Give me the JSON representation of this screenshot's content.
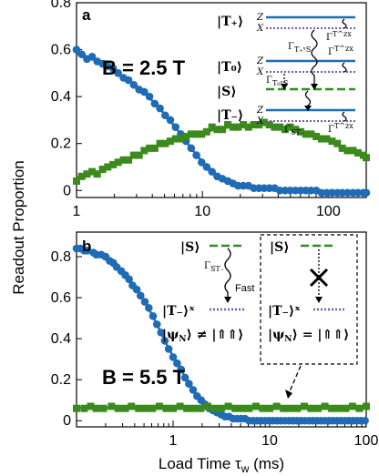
{
  "colors": {
    "blue": "#1f6bb5",
    "green": "#3c8a1e",
    "purple": "#7a5aa8",
    "green_line": "#2e8b1e"
  },
  "ylabel": "Readout Proportion",
  "xlabel": "Load Time τ",
  "xlabel_sub": "w",
  "xlabel_unit": " (ms)",
  "chart_data": [
    {
      "type": "scatter",
      "panel": "a",
      "xscale": "log",
      "xlim": [
        1,
        200
      ],
      "ylim": [
        -0.03,
        0.8
      ],
      "xticks": [
        1,
        10,
        100
      ],
      "yticks": [
        0,
        0.2,
        0.4,
        0.6,
        0.8
      ],
      "ytick_labels": [
        "0",
        "0.2",
        "0.4",
        "0.6",
        "0.8"
      ],
      "annotation": "B = 2.5 T",
      "series": [
        {
          "color": "blue",
          "marker": "circle",
          "x": [
            1.0,
            1.1,
            1.21,
            1.33,
            1.46,
            1.61,
            1.77,
            1.95,
            2.14,
            2.36,
            2.59,
            2.85,
            3.14,
            3.45,
            3.8,
            4.18,
            4.6,
            5.06,
            5.56,
            6.12,
            6.73,
            7.4,
            8.14,
            8.96,
            9.85,
            10.8,
            11.9,
            13.1,
            14.4,
            15.9,
            17.5,
            19.2,
            21.1,
            23.2,
            25.6,
            28.1,
            30.9,
            34.0,
            37.4,
            41.2,
            45.3,
            49.8,
            54.8,
            60.3,
            66.3,
            72.9,
            80.2,
            88.2,
            97.0,
            107,
            118,
            129,
            142,
            157,
            172,
            190,
            200
          ],
          "y": [
            0.6,
            0.58,
            0.56,
            0.57,
            0.55,
            0.54,
            0.53,
            0.52,
            0.5,
            0.48,
            0.47,
            0.45,
            0.43,
            0.42,
            0.4,
            0.37,
            0.35,
            0.32,
            0.3,
            0.27,
            0.24,
            0.21,
            0.18,
            0.15,
            0.12,
            0.1,
            0.08,
            0.06,
            0.05,
            0.04,
            0.03,
            0.02,
            0.02,
            0.02,
            0.01,
            0.01,
            0.01,
            0.01,
            0.01,
            0.0,
            0.0,
            0.0,
            0.0,
            0.0,
            0.0,
            0.0,
            0.0,
            -0.01,
            -0.01,
            -0.01,
            -0.01,
            -0.01,
            -0.01,
            -0.01,
            -0.01,
            -0.01,
            -0.01
          ]
        },
        {
          "color": "green",
          "marker": "square",
          "x": [
            1.0,
            1.1,
            1.21,
            1.33,
            1.46,
            1.61,
            1.77,
            1.95,
            2.14,
            2.36,
            2.59,
            2.85,
            3.14,
            3.45,
            3.8,
            4.18,
            4.6,
            5.06,
            5.56,
            6.12,
            6.73,
            7.4,
            8.14,
            8.96,
            9.85,
            10.8,
            11.9,
            13.1,
            14.4,
            15.9,
            17.5,
            19.2,
            21.1,
            23.2,
            25.6,
            28.1,
            30.9,
            34.0,
            37.4,
            41.2,
            45.3,
            49.8,
            54.8,
            60.3,
            66.3,
            72.9,
            80.2,
            88.2,
            97.0,
            107,
            118,
            129,
            142,
            157,
            172,
            190,
            200
          ],
          "y": [
            0.04,
            0.06,
            0.07,
            0.08,
            0.07,
            0.09,
            0.1,
            0.11,
            0.12,
            0.13,
            0.13,
            0.15,
            0.15,
            0.17,
            0.18,
            0.18,
            0.2,
            0.2,
            0.21,
            0.22,
            0.22,
            0.23,
            0.24,
            0.24,
            0.24,
            0.25,
            0.27,
            0.26,
            0.26,
            0.28,
            0.27,
            0.27,
            0.28,
            0.27,
            0.28,
            0.28,
            0.29,
            0.28,
            0.27,
            0.27,
            0.26,
            0.27,
            0.26,
            0.25,
            0.24,
            0.24,
            0.23,
            0.22,
            0.22,
            0.21,
            0.2,
            0.18,
            0.17,
            0.17,
            0.16,
            0.15,
            0.14
          ]
        }
      ]
    },
    {
      "type": "scatter",
      "panel": "b",
      "xscale": "log",
      "xlim": [
        0.1,
        100
      ],
      "ylim": [
        -0.03,
        0.92
      ],
      "xticks": [
        1,
        10,
        100
      ],
      "yticks": [
        0,
        0.2,
        0.4,
        0.6,
        0.8
      ],
      "ytick_labels": [
        "0",
        "0.2",
        "0.4",
        "0.6",
        "0.8"
      ],
      "annotation": "B = 5.5 T",
      "series": [
        {
          "color": "blue",
          "marker": "circle",
          "x": [
            0.1,
            0.11,
            0.12,
            0.13,
            0.15,
            0.16,
            0.18,
            0.2,
            0.22,
            0.24,
            0.26,
            0.29,
            0.32,
            0.35,
            0.38,
            0.42,
            0.46,
            0.51,
            0.56,
            0.62,
            0.68,
            0.75,
            0.82,
            0.9,
            1.0,
            1.1,
            1.21,
            1.33,
            1.46,
            1.61,
            1.77,
            1.95,
            2.14,
            2.36,
            2.59,
            2.85,
            3.14,
            3.45,
            3.8,
            4.18,
            4.6,
            5.06,
            5.56,
            6.12,
            6.73,
            7.4,
            8.14,
            8.96,
            9.85,
            10.8,
            11.9,
            13.1,
            14.4,
            15.9,
            17.5,
            19.2,
            21.1,
            23.2,
            25.6,
            28.1,
            30.9,
            34.0,
            37.4,
            41.2,
            45.3,
            49.8,
            54.8,
            60.3,
            66.3,
            72.9,
            80.2,
            88.2,
            97.0
          ],
          "y": [
            0.84,
            0.84,
            0.83,
            0.83,
            0.82,
            0.81,
            0.81,
            0.8,
            0.78,
            0.77,
            0.75,
            0.73,
            0.71,
            0.69,
            0.66,
            0.64,
            0.61,
            0.58,
            0.55,
            0.51,
            0.47,
            0.43,
            0.39,
            0.35,
            0.31,
            0.28,
            0.25,
            0.21,
            0.18,
            0.15,
            0.12,
            0.1,
            0.08,
            0.06,
            0.05,
            0.04,
            0.03,
            0.02,
            0.02,
            0.01,
            0.01,
            0.01,
            0.01,
            0.0,
            0.0,
            0.0,
            0.0,
            0.0,
            0.0,
            0.0,
            0.0,
            0.0,
            0.0,
            0.0,
            0.0,
            0.0,
            0.0,
            0.0,
            0.0,
            0.0,
            0.0,
            0.0,
            0.0,
            0.0,
            0.0,
            0.0,
            0.0,
            0.0,
            0.0,
            0.0,
            0.0,
            0.0,
            0.0
          ]
        },
        {
          "color": "green",
          "marker": "square",
          "x": [
            0.1,
            0.12,
            0.14,
            0.16,
            0.19,
            0.23,
            0.27,
            0.32,
            0.37,
            0.44,
            0.52,
            0.61,
            0.72,
            0.85,
            1.0,
            1.18,
            1.39,
            1.64,
            1.93,
            2.28,
            2.68,
            3.16,
            3.73,
            4.39,
            5.18,
            6.11,
            7.2,
            8.48,
            10.0,
            11.8,
            13.9,
            16.4,
            19.3,
            22.8,
            26.8,
            31.6,
            37.3,
            43.9,
            51.8,
            61.1,
            72.0,
            84.8,
            100
          ],
          "y": [
            0.06,
            0.06,
            0.07,
            0.06,
            0.06,
            0.07,
            0.06,
            0.06,
            0.07,
            0.06,
            0.06,
            0.06,
            0.07,
            0.06,
            0.06,
            0.07,
            0.06,
            0.06,
            0.06,
            0.07,
            0.06,
            0.06,
            0.07,
            0.06,
            0.06,
            0.06,
            0.07,
            0.06,
            0.06,
            0.07,
            0.06,
            0.06,
            0.06,
            0.07,
            0.06,
            0.06,
            0.07,
            0.06,
            0.06,
            0.06,
            0.07,
            0.06,
            0.07
          ]
        }
      ]
    }
  ],
  "inset_a": {
    "T_plus": "|T₊⟩",
    "T_zero": "|T₀⟩",
    "S": "|S⟩",
    "T_minus": "|T₋⟩",
    "z": "Z",
    "x": "X",
    "rate_T": "Γ",
    "rate_T_sup": "T^zx",
    "rate_TpS": "Γ",
    "rate_TpS_sub": "T₊ˣS",
    "rate_T0S": "Γ",
    "rate_T0S_sub": "T₀ˣS",
    "rate_STm": "Γ",
    "rate_STm_sub": "ST₋"
  },
  "inset_b": {
    "S": "|S⟩",
    "T_minus": "|T₋⟩ˣ",
    "psi_left": "|ψ",
    "psi_sub": "N",
    "psi_left_rel": "⟩ ≠ |⇑⇑⟩",
    "psi_right_rel": "⟩ = |⇑⇑⟩",
    "rate": "Γ",
    "rate_sub": "ST₋",
    "fast": "Fast"
  }
}
